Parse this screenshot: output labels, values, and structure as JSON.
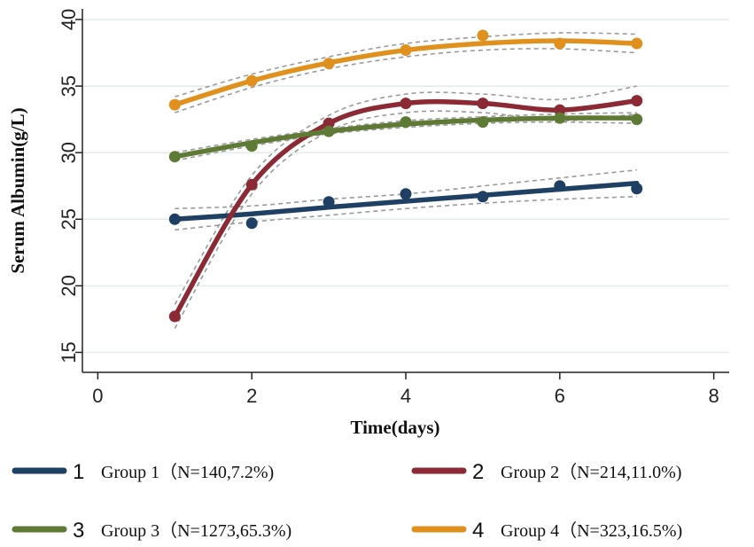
{
  "chart_data": {
    "type": "line",
    "xlabel": "Time(days)",
    "ylabel": "Serum Albumin(g/L)",
    "xlim": [
      -0.2,
      8.2
    ],
    "ylim": [
      13.5,
      40.8
    ],
    "xticks": [
      0,
      2,
      4,
      6,
      8
    ],
    "yticks": [
      15,
      20,
      25,
      30,
      35,
      40
    ],
    "x": [
      1,
      2,
      3,
      4,
      5,
      6,
      7
    ],
    "series": [
      {
        "name": "Group 1",
        "legend_num": "1",
        "legend_label": "Group 1（N=140,7.2%)",
        "color": "#1f3f63",
        "points": [
          25.0,
          24.7,
          26.3,
          26.9,
          26.7,
          27.5,
          27.3
        ],
        "fit": [
          25.0,
          25.4,
          25.9,
          26.35,
          26.8,
          27.25,
          27.7
        ],
        "ci_low": [
          24.2,
          24.8,
          25.3,
          25.8,
          26.2,
          26.5,
          26.7
        ],
        "ci_high": [
          25.8,
          26.0,
          26.5,
          26.9,
          27.5,
          28.1,
          28.7
        ]
      },
      {
        "name": "Group 2",
        "legend_num": "2",
        "legend_label": "Group 2（N=214,11.0%)",
        "color": "#8b2a35",
        "points": [
          17.7,
          27.6,
          32.2,
          33.7,
          33.7,
          33.2,
          33.9
        ],
        "fit": [
          17.7,
          27.6,
          32.2,
          33.7,
          33.7,
          33.2,
          33.9
        ],
        "ci_low": [
          16.8,
          26.9,
          31.6,
          33.0,
          33.0,
          32.4,
          32.9
        ],
        "ci_high": [
          18.6,
          28.3,
          32.8,
          34.4,
          34.4,
          34.0,
          35.0
        ]
      },
      {
        "name": "Group 3",
        "legend_num": "3",
        "legend_label": "Group 3（N=1273,65.3%)",
        "color": "#5e7a35",
        "points": [
          29.7,
          30.5,
          31.6,
          32.3,
          32.3,
          32.6,
          32.5
        ],
        "fit": [
          29.7,
          30.75,
          31.6,
          32.15,
          32.45,
          32.6,
          32.6
        ],
        "ci_low": [
          29.4,
          30.5,
          31.4,
          31.9,
          32.2,
          32.3,
          32.2
        ],
        "ci_high": [
          30.0,
          31.0,
          31.8,
          32.4,
          32.7,
          32.9,
          33.0
        ]
      },
      {
        "name": "Group 4",
        "legend_num": "4",
        "legend_label": "Group 4（N=323,16.5%)",
        "color": "#e0901d",
        "points": [
          33.6,
          35.4,
          36.7,
          37.7,
          38.8,
          38.2,
          38.2
        ],
        "fit": [
          33.6,
          35.4,
          36.75,
          37.7,
          38.2,
          38.4,
          38.2
        ],
        "ci_low": [
          33.0,
          34.9,
          36.3,
          37.2,
          37.7,
          37.8,
          37.5
        ],
        "ci_high": [
          34.2,
          35.9,
          37.2,
          38.2,
          38.7,
          39.0,
          38.9
        ]
      }
    ]
  }
}
